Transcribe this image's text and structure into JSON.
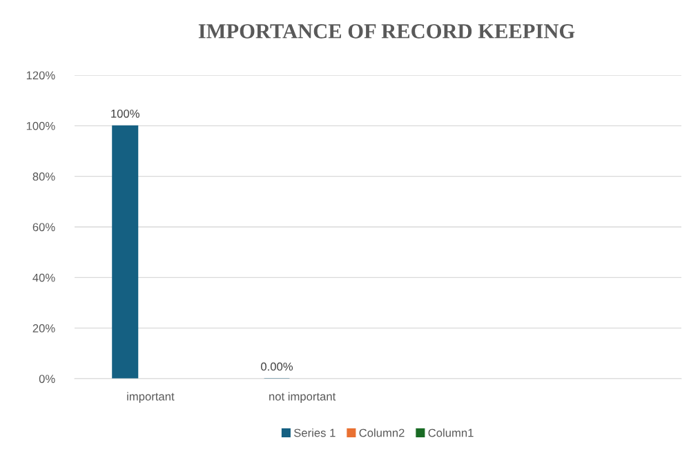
{
  "chart_data": {
    "type": "bar",
    "title": "IMPORTANCE OF RECORD KEEPING",
    "categories": [
      "important",
      "not important",
      null,
      null
    ],
    "series": [
      {
        "name": "Series 1",
        "color": "#156082",
        "values": [
          100,
          0,
          null,
          null
        ],
        "value_labels": [
          "100%",
          "0.00%",
          null,
          null
        ]
      },
      {
        "name": "Column2",
        "color": "#e97132",
        "values": [
          null,
          null,
          null,
          null
        ]
      },
      {
        "name": "Column1",
        "color": "#196b24",
        "values": [
          null,
          null,
          null,
          null
        ]
      }
    ],
    "ylim": [
      0,
      120
    ],
    "yticks": [
      {
        "value": 0,
        "label": "0%"
      },
      {
        "value": 20,
        "label": "20%"
      },
      {
        "value": 40,
        "label": "40%"
      },
      {
        "value": 60,
        "label": "60%"
      },
      {
        "value": 80,
        "label": "80%"
      },
      {
        "value": 100,
        "label": "100%"
      },
      {
        "value": 120,
        "label": "120%"
      }
    ],
    "grid": "y",
    "legend": "bottom"
  }
}
